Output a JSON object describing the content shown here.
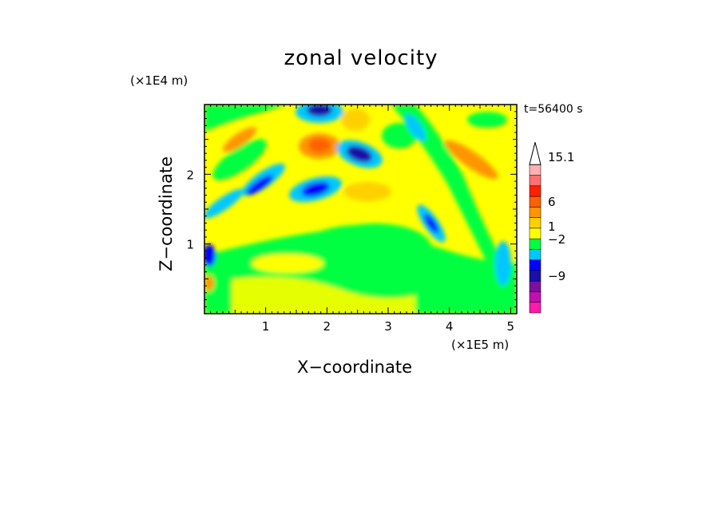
{
  "chart_data": {
    "type": "heatmap",
    "title": "zonal velocity",
    "xlabel": "X−coordinate",
    "ylabel": "Z−coordinate",
    "x_unit": "(×1E5 m)",
    "z_unit": "(×1E4 m)",
    "time_label": "t=56400 s",
    "xlim": [
      0,
      5.1
    ],
    "ylim": [
      0,
      3.0
    ],
    "x_ticks": [
      1,
      2,
      3,
      4,
      5
    ],
    "y_ticks": [
      1,
      2
    ],
    "colorbar": {
      "tick_labels": [
        "15.1",
        "6",
        "1",
        "−2",
        "−9"
      ],
      "colors": [
        "#ff1aaa",
        "#c010b0",
        "#7a10a0",
        "#1a10a8",
        "#0000ff",
        "#00c8ff",
        "#00ff40",
        "#ffff00",
        "#ffd000",
        "#ff9500",
        "#ff6000",
        "#ff2000",
        "#ff7070",
        "#ffb0b0",
        "#ffffff"
      ]
    }
  }
}
